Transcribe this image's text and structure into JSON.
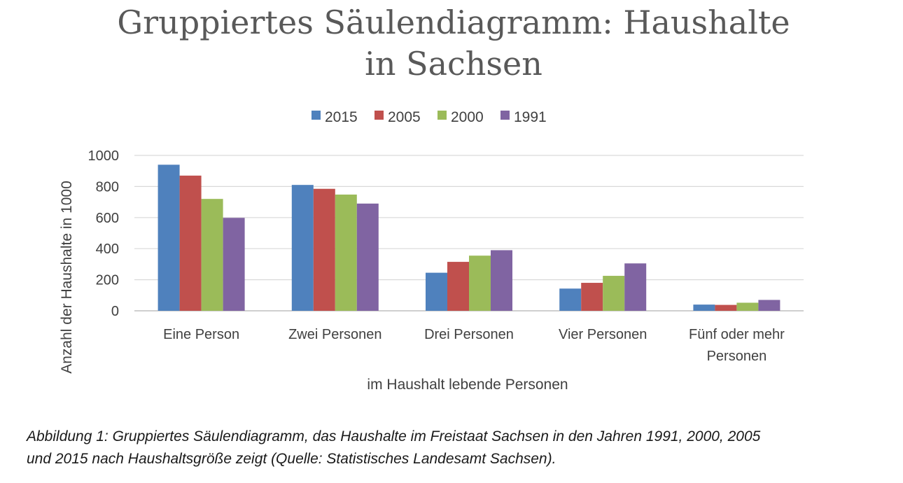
{
  "chart_data": {
    "type": "bar",
    "title_lines": [
      "Gruppiertes Säulendiagramm: Haushalte",
      "in Sachsen"
    ],
    "xlabel": "im Haushalt lebende Personen",
    "ylabel": "Anzahl der Haushalte in 1000",
    "categories": [
      [
        "Eine Person"
      ],
      [
        "Zwei Personen"
      ],
      [
        "Drei Personen"
      ],
      [
        "Vier Personen"
      ],
      [
        "Fünf oder mehr",
        "Personen"
      ]
    ],
    "yticks": [
      "0",
      "200",
      "400",
      "600",
      "800",
      "1000"
    ],
    "ylim": [
      0,
      1000
    ],
    "grid": true,
    "legend_position": "top",
    "series": [
      {
        "name": "2015",
        "color": "#4f81bd",
        "values": [
          940,
          810,
          245,
          143,
          40
        ]
      },
      {
        "name": "2005",
        "color": "#c0504d",
        "values": [
          870,
          785,
          315,
          180,
          38
        ]
      },
      {
        "name": "2000",
        "color": "#9bbb59",
        "values": [
          720,
          748,
          355,
          225,
          52
        ]
      },
      {
        "name": "1991",
        "color": "#8064a2",
        "values": [
          598,
          690,
          390,
          305,
          70
        ]
      }
    ]
  },
  "caption": {
    "lines": [
      "Abbildung 1: Gruppiertes Säulendiagramm, das Haushalte im Freistaat Sachsen in den Jahren 1991, 2000, 2005",
      "und 2015 nach Haushaltsgröße zeigt (Quelle: Statistisches Landesamt Sachsen)."
    ]
  }
}
